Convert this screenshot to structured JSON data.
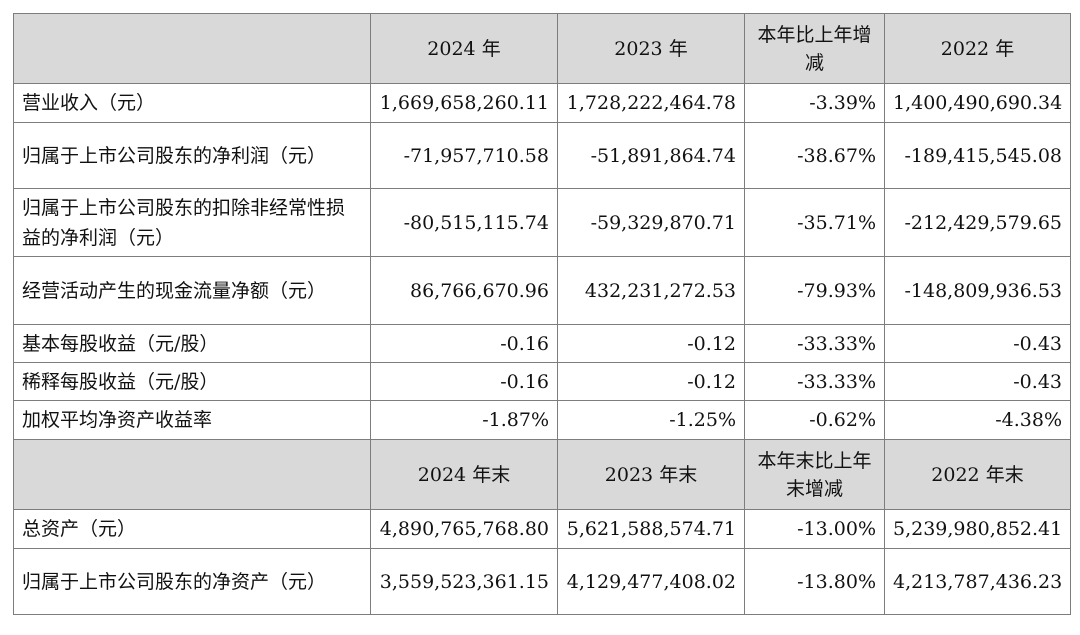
{
  "header1": {
    "col1": "2024 年",
    "col2": "2023 年",
    "col3": "本年比上年增减",
    "col4": "2022 年"
  },
  "header2": {
    "col1": "2024 年末",
    "col2": "2023 年末",
    "col3": "本年末比上年末增减",
    "col4": "2022 年末"
  },
  "rows1": [
    {
      "label": "营业收入（元）",
      "v2024": "1,669,658,260.11",
      "v2023": "1,728,222,464.78",
      "change": "-3.39%",
      "v2022": "1,400,490,690.34"
    },
    {
      "label": "归属于上市公司股东的净利润（元）",
      "v2024": "-71,957,710.58",
      "v2023": "-51,891,864.74",
      "change": "-38.67%",
      "v2022": "-189,415,545.08"
    },
    {
      "label": "归属于上市公司股东的扣除非经常性损益的净利润（元）",
      "v2024": "-80,515,115.74",
      "v2023": "-59,329,870.71",
      "change": "-35.71%",
      "v2022": "-212,429,579.65"
    },
    {
      "label": "经营活动产生的现金流量净额（元）",
      "v2024": "86,766,670.96",
      "v2023": "432,231,272.53",
      "change": "-79.93%",
      "v2022": "-148,809,936.53"
    },
    {
      "label": "基本每股收益（元/股）",
      "v2024": "-0.16",
      "v2023": "-0.12",
      "change": "-33.33%",
      "v2022": "-0.43"
    },
    {
      "label": "稀释每股收益（元/股）",
      "v2024": "-0.16",
      "v2023": "-0.12",
      "change": "-33.33%",
      "v2022": "-0.43"
    },
    {
      "label": "加权平均净资产收益率",
      "v2024": "-1.87%",
      "v2023": "-1.25%",
      "change": "-0.62%",
      "v2022": "-4.38%"
    }
  ],
  "rows2": [
    {
      "label": "总资产（元）",
      "v2024": "4,890,765,768.80",
      "v2023": "5,621,588,574.71",
      "change": "-13.00%",
      "v2022": "5,239,980,852.41"
    },
    {
      "label": "归属于上市公司股东的净资产（元）",
      "v2024": "3,559,523,361.15",
      "v2023": "4,129,477,408.02",
      "change": "-13.80%",
      "v2022": "4,213,787,436.23"
    }
  ]
}
